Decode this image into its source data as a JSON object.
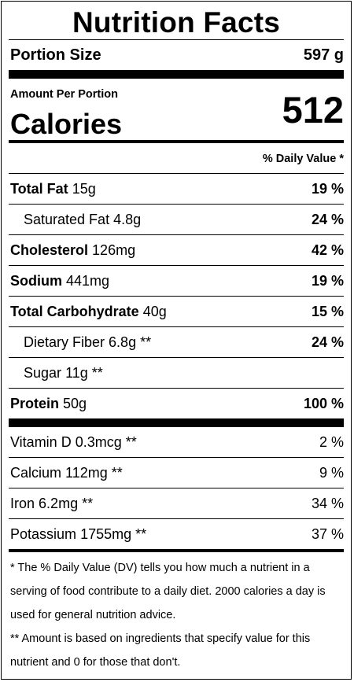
{
  "title": "Nutrition Facts",
  "portion": {
    "label": "Portion Size",
    "value": "597 g"
  },
  "amount_per": "Amount Per Portion",
  "calories": {
    "label": "Calories",
    "value": "512"
  },
  "dv_header": "% Daily Value *",
  "nutrients": [
    {
      "name": "Total Fat",
      "amount": "15g",
      "dv": "19 %"
    },
    {
      "name": "Saturated Fat",
      "amount": "4.8g",
      "dv": "24 %"
    },
    {
      "name": "Cholesterol",
      "amount": "126mg",
      "dv": "42 %"
    },
    {
      "name": "Sodium",
      "amount": "441mg",
      "dv": "19 %"
    },
    {
      "name": "Total Carbohydrate",
      "amount": "40g",
      "dv": "15 %"
    },
    {
      "name": "Dietary Fiber",
      "amount": "6.8g **",
      "dv": "24 %"
    },
    {
      "name": "Sugar",
      "amount": "11g **",
      "dv": ""
    },
    {
      "name": "Protein",
      "amount": "50g",
      "dv": "100 %"
    }
  ],
  "vitamins": [
    {
      "name": "Vitamin D",
      "amount": "0.3mcg **",
      "dv": "2 %"
    },
    {
      "name": "Calcium",
      "amount": "112mg **",
      "dv": "9 %"
    },
    {
      "name": "Iron",
      "amount": "6.2mg **",
      "dv": "34 %"
    },
    {
      "name": "Potassium",
      "amount": "1755mg **",
      "dv": "37 %"
    }
  ],
  "footnotes": {
    "dv": "* The % Daily Value (DV) tells you how much a nutrient in a serving of food contribute to a daily diet. 2000 calories a day is used for general nutrition advice.",
    "amount": "** Amount is based on ingredients that specify value for this nutrient and 0 for those that don't."
  }
}
